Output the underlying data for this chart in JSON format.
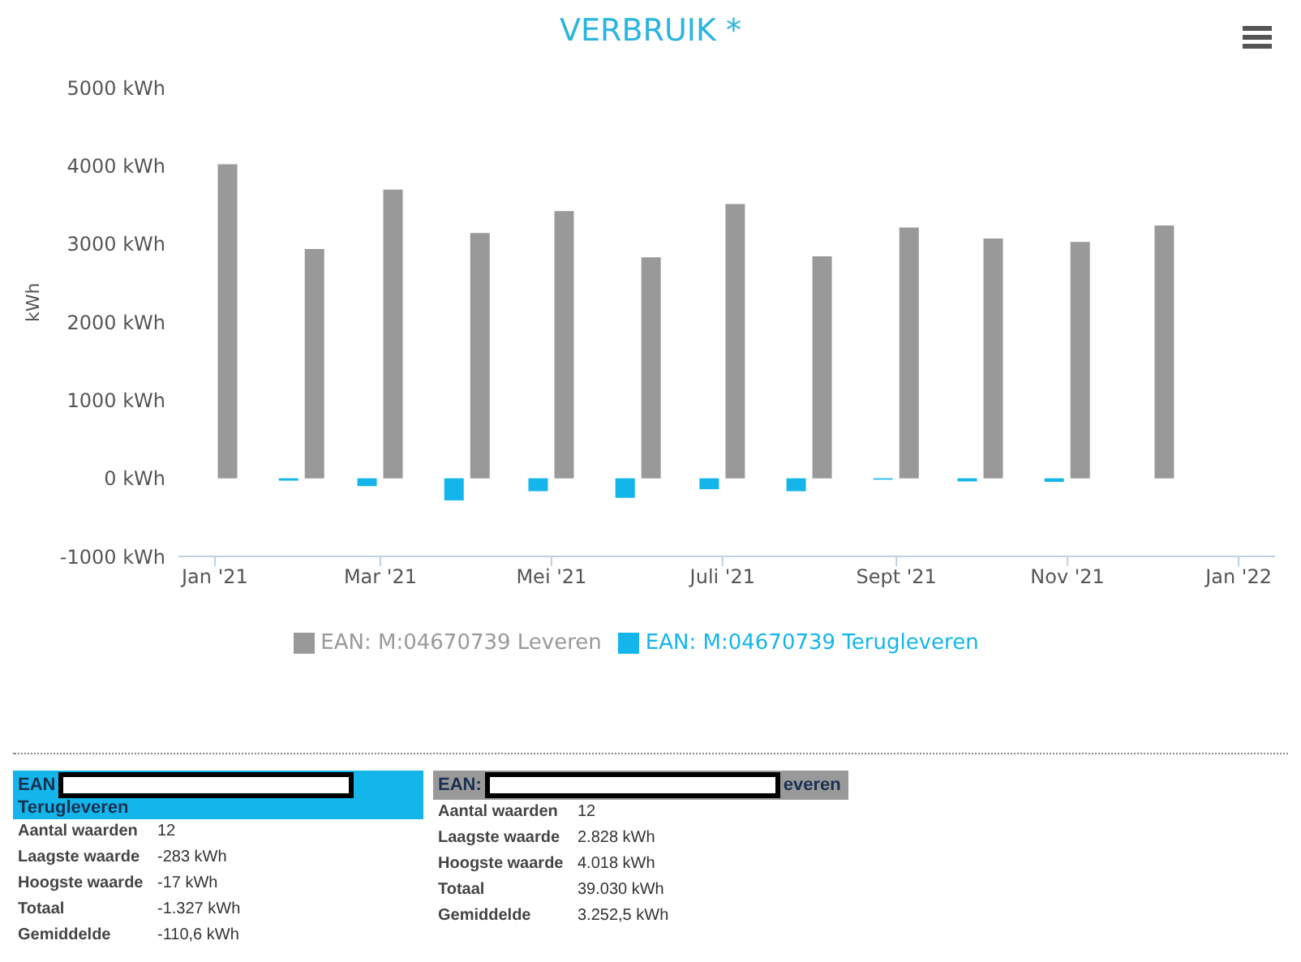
{
  "chart_data": {
    "type": "bar",
    "title": "VERBRUIK *",
    "ylabel": "kWh",
    "x": [
      "2021-01",
      "2021-02",
      "2021-03",
      "2021-04",
      "2021-05",
      "2021-06",
      "2021-07",
      "2021-08",
      "2021-09",
      "2021-10",
      "2021-11",
      "2021-12"
    ],
    "series": [
      {
        "name": "EAN: M:04670739 Terugleveren",
        "color": "#13b5ea",
        "values": [
          null,
          -30,
          -100,
          -283,
          -165,
          -250,
          -140,
          -165,
          -17,
          -40,
          -45,
          null
        ]
      },
      {
        "name": "EAN: M:04670739 Leveren",
        "color": "#999999",
        "values": [
          4018,
          2935,
          3695,
          3140,
          3420,
          2828,
          3510,
          2842,
          3210,
          3070,
          3025,
          3235
        ]
      }
    ],
    "xlim": [
      "2020-12-19",
      "2022-01-14"
    ],
    "xticks": [
      {
        "value": "2021-01",
        "label": "Jan '21"
      },
      {
        "value": "2021-03",
        "label": "Mar '21"
      },
      {
        "value": "2021-05",
        "label": "Mei '21"
      },
      {
        "value": "2021-07",
        "label": "Juli '21"
      },
      {
        "value": "2021-09",
        "label": "Sept '21"
      },
      {
        "value": "2021-11",
        "label": "Nov '21"
      },
      {
        "value": "2022-01",
        "label": "Jan '22"
      }
    ],
    "ylim": [
      -1000,
      5000
    ],
    "yticks": [
      {
        "value": -1000,
        "label": "-1000 kWh"
      },
      {
        "value": 0,
        "label": "0 kWh"
      },
      {
        "value": 1000,
        "label": "1000 kWh"
      },
      {
        "value": 2000,
        "label": "2000 kWh"
      },
      {
        "value": 3000,
        "label": "3000 kWh"
      },
      {
        "value": 4000,
        "label": "4000 kWh"
      },
      {
        "value": 5000,
        "label": "5000 kWh"
      }
    ],
    "grid": false,
    "legend": "bottom",
    "annotations": [
      "EAN",
      "Terugleveren",
      "Aantal waarden",
      "12",
      "Laagste waarde",
      "-283 kWh",
      "Hoogste waarde",
      "-17 kWh",
      "Totaal",
      "-1.327 kWh",
      "Gemiddelde",
      "-110,6 kWh",
      "EAN:",
      "everen",
      "Aantal waarden",
      "12",
      "Laagste waarde",
      "2.828 kWh",
      "Hoogste waarde",
      "4.018 kWh",
      "Totaal",
      "39.030 kWh",
      "Gemiddelde",
      "3.252,5 kWh"
    ]
  }
}
